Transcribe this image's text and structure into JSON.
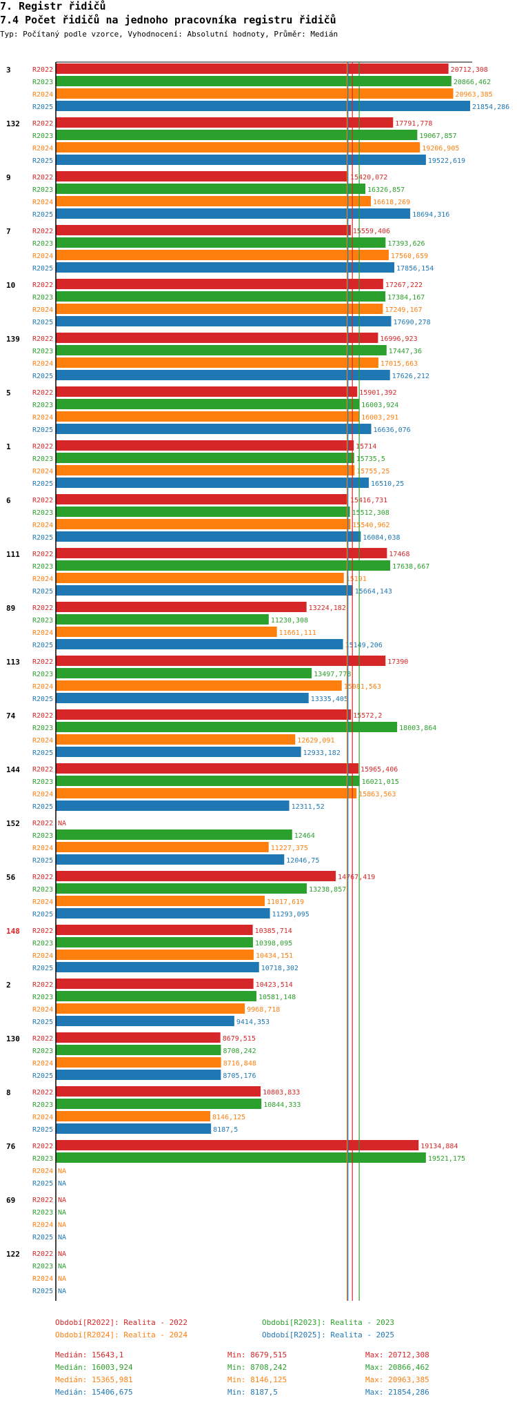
{
  "header": {
    "title": "7. Registr řidičů",
    "subtitle": "7.4 Počet řidičů na jednoho pracovníka registru řidičů",
    "info": "Typ: Počítaný podle vzorce, Vyhodnocení: Absolutní hodnoty, Průměr: Medián"
  },
  "colors": {
    "R2022": "#d62728",
    "R2023": "#2ca02c",
    "R2024": "#ff7f0e",
    "R2025": "#1f77b4",
    "highlight_group": "#e02020"
  },
  "chart_data": {
    "type": "bar",
    "orientation": "horizontal",
    "series_names": [
      "R2022",
      "R2023",
      "R2024",
      "R2025"
    ],
    "na_label": "NA",
    "xlim": [
      0,
      21854.286
    ],
    "reference_lines": {
      "R2022": 15643.1,
      "R2023": 16003.924,
      "R2024": 15365.981,
      "R2025": 15406.675
    },
    "groups": [
      {
        "label": "3",
        "highlight": false,
        "values": [
          20712.308,
          20866.462,
          20963.385,
          21854.286
        ],
        "texts": [
          "20712,308",
          "20866,462",
          "20963,385",
          "21854,286"
        ]
      },
      {
        "label": "132",
        "highlight": false,
        "values": [
          17791.778,
          19067.857,
          19206.905,
          19522.619
        ],
        "texts": [
          "17791,778",
          "19067,857",
          "19206,905",
          "19522,619"
        ]
      },
      {
        "label": "9",
        "highlight": false,
        "values": [
          15420.072,
          16326.857,
          16618.269,
          18694.316
        ],
        "texts": [
          "15420,072",
          "16326,857",
          "16618,269",
          "18694,316"
        ]
      },
      {
        "label": "7",
        "highlight": false,
        "values": [
          15559.406,
          17393.626,
          17560.659,
          17856.154
        ],
        "texts": [
          "15559,406",
          "17393,626",
          "17560,659",
          "17856,154"
        ]
      },
      {
        "label": "10",
        "highlight": false,
        "values": [
          17267.222,
          17384.167,
          17249.167,
          17690.278
        ],
        "texts": [
          "17267,222",
          "17384,167",
          "17249,167",
          "17690,278"
        ]
      },
      {
        "label": "139",
        "highlight": false,
        "values": [
          16996.923,
          17447.36,
          17015.663,
          17626.212
        ],
        "texts": [
          "16996,923",
          "17447,36",
          "17015,663",
          "17626,212"
        ]
      },
      {
        "label": "5",
        "highlight": false,
        "values": [
          15901.392,
          16003.924,
          16003.291,
          16636.076
        ],
        "texts": [
          "15901,392",
          "16003,924",
          "16003,291",
          "16636,076"
        ]
      },
      {
        "label": "1",
        "highlight": false,
        "values": [
          15714,
          15735.5,
          15755.25,
          16510.25
        ],
        "texts": [
          "15714",
          "15735,5",
          "15755,25",
          "16510,25"
        ]
      },
      {
        "label": "6",
        "highlight": false,
        "values": [
          15416.731,
          15512.308,
          15540.962,
          16084.038
        ],
        "texts": [
          "15416,731",
          "15512,308",
          "15540,962",
          "16084,038"
        ]
      },
      {
        "label": "111",
        "highlight": false,
        "values": [
          17468,
          17638.667,
          15191,
          15664.143
        ],
        "texts": [
          "17468",
          "17638,667",
          "15191",
          "15664,143"
        ]
      },
      {
        "label": "89",
        "highlight": false,
        "values": [
          13224.182,
          11230.308,
          11661.111,
          15149.206
        ],
        "texts": [
          "13224,182",
          "11230,308",
          "11661,111",
          "15149,206"
        ]
      },
      {
        "label": "113",
        "highlight": false,
        "values": [
          17390,
          13497.778,
          15081.563,
          13335.405
        ],
        "texts": [
          "17390",
          "13497,778",
          "15081,563",
          "13335,405"
        ]
      },
      {
        "label": "74",
        "highlight": false,
        "values": [
          15572.2,
          18003.864,
          12629.091,
          12933.182
        ],
        "texts": [
          "15572,2",
          "18003,864",
          "12629,091",
          "12933,182"
        ]
      },
      {
        "label": "144",
        "highlight": false,
        "values": [
          15965.406,
          16021.015,
          15863.563,
          12311.52
        ],
        "texts": [
          "15965,406",
          "16021,015",
          "15863,563",
          "12311,52"
        ]
      },
      {
        "label": "152",
        "highlight": false,
        "values": [
          null,
          12464,
          11227.375,
          12046.75
        ],
        "texts": [
          null,
          "12464",
          "11227,375",
          "12046,75"
        ]
      },
      {
        "label": "56",
        "highlight": false,
        "values": [
          14767.419,
          13238.857,
          11017.619,
          11293.095
        ],
        "texts": [
          "14767,419",
          "13238,857",
          "11017,619",
          "11293,095"
        ]
      },
      {
        "label": "148",
        "highlight": true,
        "values": [
          10385.714,
          10398.095,
          10434.151,
          10718.302
        ],
        "texts": [
          "10385,714",
          "10398,095",
          "10434,151",
          "10718,302"
        ]
      },
      {
        "label": "2",
        "highlight": false,
        "values": [
          10423.514,
          10581.148,
          9968.718,
          9414.353
        ],
        "texts": [
          "10423,514",
          "10581,148",
          "9968,718",
          "9414,353"
        ]
      },
      {
        "label": "130",
        "highlight": false,
        "values": [
          8679.515,
          8708.242,
          8716.848,
          8705.176
        ],
        "texts": [
          "8679,515",
          "8708,242",
          "8716,848",
          "8705,176"
        ]
      },
      {
        "label": "8",
        "highlight": false,
        "values": [
          10803.833,
          10844.333,
          8146.125,
          8187.5
        ],
        "texts": [
          "10803,833",
          "10844,333",
          "8146,125",
          "8187,5"
        ]
      },
      {
        "label": "76",
        "highlight": false,
        "values": [
          19134.884,
          19521.175,
          null,
          null
        ],
        "texts": [
          "19134,884",
          "19521,175",
          null,
          null
        ]
      },
      {
        "label": "69",
        "highlight": false,
        "values": [
          null,
          null,
          null,
          null
        ],
        "texts": [
          null,
          null,
          null,
          null
        ]
      },
      {
        "label": "122",
        "highlight": false,
        "values": [
          null,
          null,
          null,
          null
        ],
        "texts": [
          null,
          null,
          null,
          null
        ]
      }
    ]
  },
  "legend": {
    "r2022": "Období[R2022]: Realita - 2022",
    "r2023": "Období[R2023]: Realita - 2023",
    "r2024": "Období[R2024]: Realita - 2024",
    "r2025": "Období[R2025]: Realita - 2025"
  },
  "stats": [
    {
      "median": "Medián: 15643,1",
      "min": "Min: 8679,515",
      "max": "Max: 20712,308"
    },
    {
      "median": "Medián: 16003,924",
      "min": "Min: 8708,242",
      "max": "Max: 20866,462"
    },
    {
      "median": "Medián: 15365,981",
      "min": "Min: 8146,125",
      "max": "Max: 20963,385"
    },
    {
      "median": "Medián: 15406,675",
      "min": "Min: 8187,5",
      "max": "Max: 21854,286"
    }
  ]
}
